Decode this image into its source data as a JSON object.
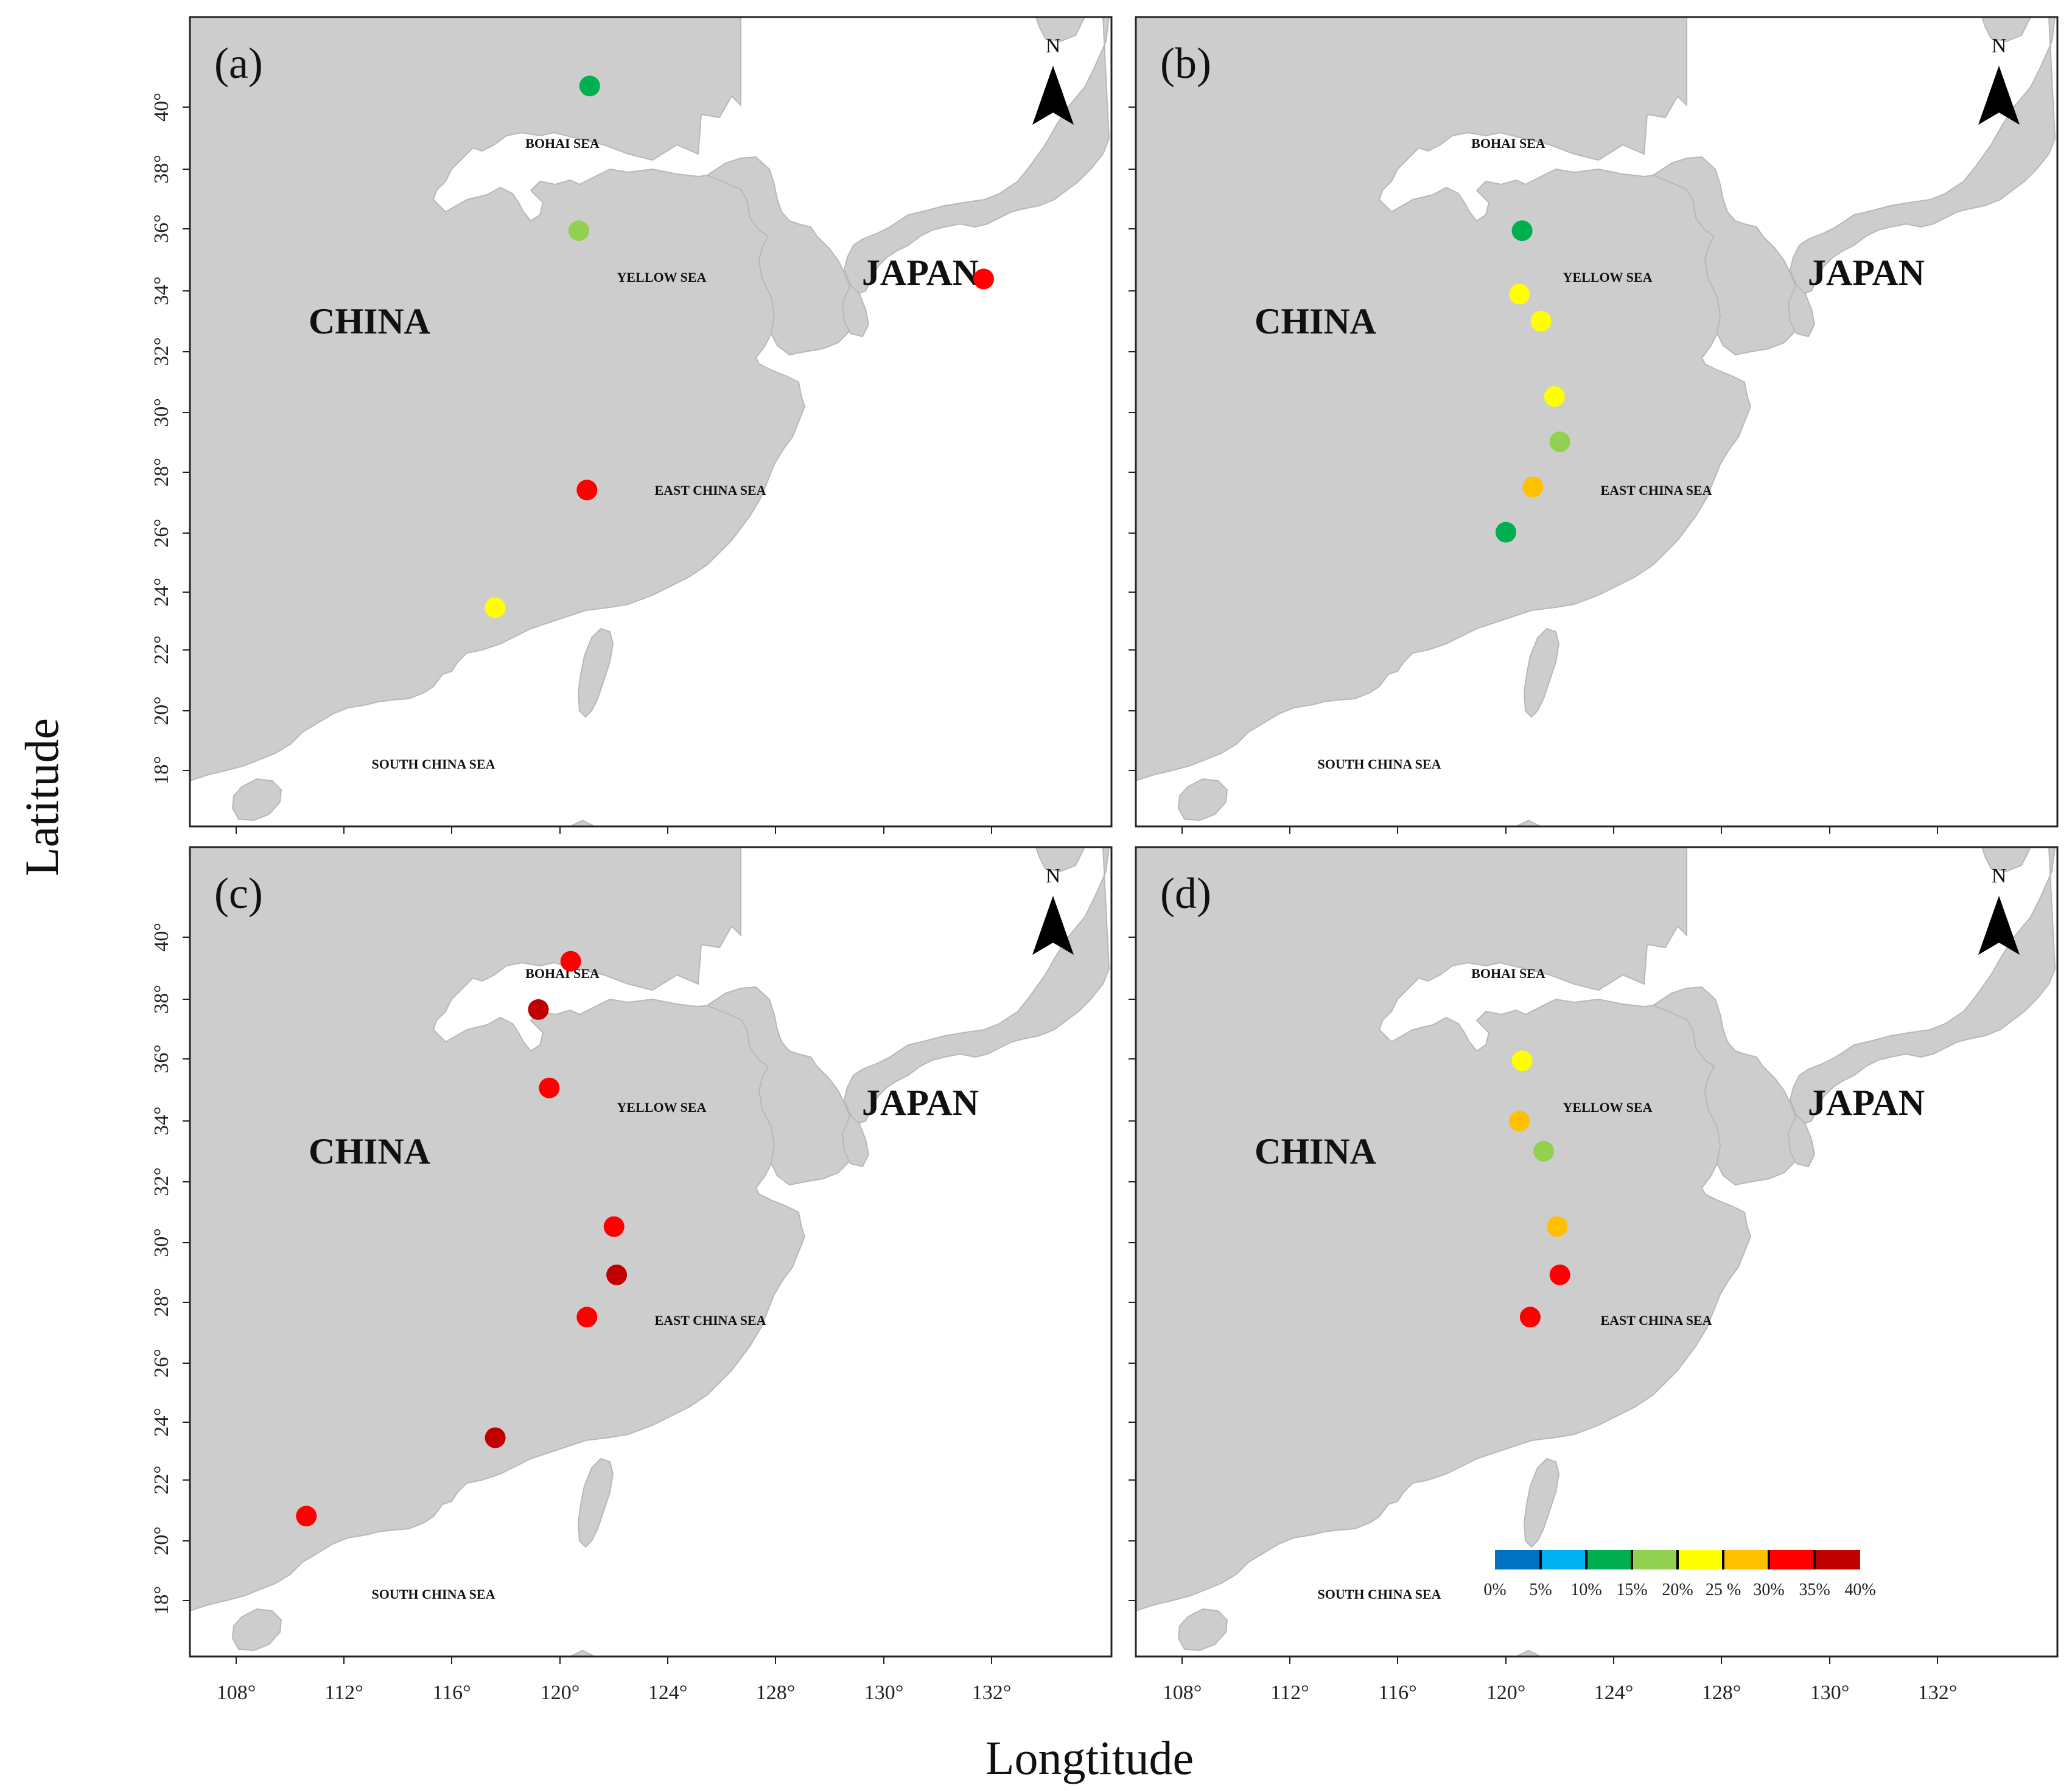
{
  "figure": {
    "x_axis_title": "Longtitude",
    "y_axis_title": "Latitude"
  },
  "ticks": {
    "longitude": [
      "108°",
      "112°",
      "116°",
      "120°",
      "124°",
      "128°",
      "130°",
      "132°"
    ],
    "latitude": [
      "18°",
      "20°",
      "22°",
      "24°",
      "26°",
      "28°",
      "30°",
      "32°",
      "34°",
      "36°",
      "38°",
      "40°"
    ]
  },
  "map_labels": {
    "north": "N",
    "china": "CHINA",
    "japan": "JAPAN",
    "bohai": "BOHAI SEA",
    "yellow": "YELLOW SEA",
    "east_china": "EAST CHINA SEA",
    "south_china": "SOUTH CHINA SEA"
  },
  "legend": {
    "colors": [
      "#0070c0",
      "#00b0f0",
      "#00b050",
      "#92d050",
      "#ffff00",
      "#ffc000",
      "#ff0000",
      "#c00000"
    ],
    "labels": [
      "0%",
      "5%",
      "10%",
      "15%",
      "20%",
      "25 %",
      "30%",
      "35%",
      "40%"
    ]
  },
  "chart_data": {
    "type": "map",
    "panels": [
      {
        "label": "(a)",
        "points": [
          {
            "lon": 121.1,
            "lat": 40.7,
            "color": "#00b050"
          },
          {
            "lon": 120.7,
            "lat": 35.9,
            "color": "#92d050"
          },
          {
            "lon": 135.7,
            "lat": 34.3,
            "color": "#ff0000"
          },
          {
            "lon": 121.0,
            "lat": 27.3,
            "color": "#ff0000"
          },
          {
            "lon": 117.6,
            "lat": 23.4,
            "color": "#ffff00"
          }
        ]
      },
      {
        "label": "(b)",
        "points": [
          {
            "lon": 120.6,
            "lat": 35.9,
            "color": "#00b050"
          },
          {
            "lon": 120.5,
            "lat": 33.8,
            "color": "#ffff00"
          },
          {
            "lon": 121.3,
            "lat": 32.9,
            "color": "#ffff00"
          },
          {
            "lon": 121.8,
            "lat": 30.4,
            "color": "#ffff00"
          },
          {
            "lon": 122.0,
            "lat": 28.9,
            "color": "#92d050"
          },
          {
            "lon": 121.0,
            "lat": 27.4,
            "color": "#ffc000"
          },
          {
            "lon": 120.0,
            "lat": 25.9,
            "color": "#00b050"
          }
        ]
      },
      {
        "label": "(c)",
        "points": [
          {
            "lon": 120.4,
            "lat": 39.2,
            "color": "#ff0000"
          },
          {
            "lon": 119.2,
            "lat": 37.6,
            "color": "#c00000"
          },
          {
            "lon": 119.6,
            "lat": 35.0,
            "color": "#ff0000"
          },
          {
            "lon": 122.0,
            "lat": 30.4,
            "color": "#ff0000"
          },
          {
            "lon": 122.1,
            "lat": 28.8,
            "color": "#c00000"
          },
          {
            "lon": 121.0,
            "lat": 27.4,
            "color": "#ff0000"
          },
          {
            "lon": 117.6,
            "lat": 23.4,
            "color": "#c00000"
          },
          {
            "lon": 110.6,
            "lat": 20.8,
            "color": "#ff0000"
          }
        ]
      },
      {
        "label": "(d)",
        "points": [
          {
            "lon": 120.6,
            "lat": 35.9,
            "color": "#ffff00"
          },
          {
            "lon": 120.5,
            "lat": 33.9,
            "color": "#ffc000"
          },
          {
            "lon": 121.4,
            "lat": 32.9,
            "color": "#92d050"
          },
          {
            "lon": 121.9,
            "lat": 30.4,
            "color": "#ffc000"
          },
          {
            "lon": 122.0,
            "lat": 28.8,
            "color": "#ff0000"
          },
          {
            "lon": 120.9,
            "lat": 27.4,
            "color": "#ff0000"
          }
        ]
      }
    ]
  }
}
